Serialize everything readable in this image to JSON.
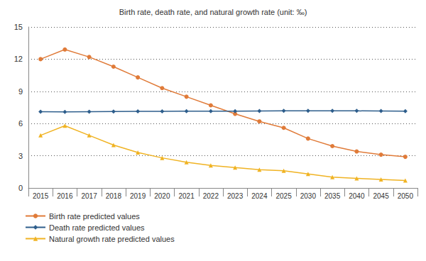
{
  "chart_data": {
    "type": "line",
    "title": "Birth rate, death rate, and natural growth rate (unit: ‰)",
    "categories": [
      "2015",
      "2016",
      "2017",
      "2018",
      "2019",
      "2020",
      "2021",
      "2022",
      "2023",
      "2024",
      "2025",
      "2030",
      "2035",
      "2040",
      "2045",
      "2050"
    ],
    "series": [
      {
        "name": "Birth rate predicted values",
        "color": "#e07b39",
        "marker": "circle",
        "line_style": "solid",
        "values": [
          12.0,
          12.9,
          12.2,
          11.3,
          10.3,
          9.3,
          8.5,
          7.7,
          6.9,
          6.2,
          5.6,
          4.6,
          3.9,
          3.4,
          3.1,
          2.9
        ]
      },
      {
        "name": "Death rate predicted values",
        "color": "#2e5e8c",
        "marker": "diamond",
        "line_style": "solid",
        "values": [
          7.1,
          7.08,
          7.1,
          7.12,
          7.14,
          7.14,
          7.15,
          7.16,
          7.16,
          7.17,
          7.18,
          7.19,
          7.19,
          7.18,
          7.17,
          7.15
        ]
      },
      {
        "name": "Natural growth rate predicted values",
        "color": "#f0b323",
        "marker": "triangle",
        "line_style": "solid",
        "values": [
          4.9,
          5.8,
          4.9,
          4.0,
          3.3,
          2.8,
          2.4,
          2.1,
          1.9,
          1.7,
          1.6,
          1.3,
          1.0,
          0.9,
          0.8,
          0.7
        ]
      }
    ],
    "ylim": [
      0,
      15
    ],
    "yticks": [
      0,
      3,
      6,
      9,
      12,
      15
    ],
    "grid": true,
    "legend": "bottom-left"
  }
}
